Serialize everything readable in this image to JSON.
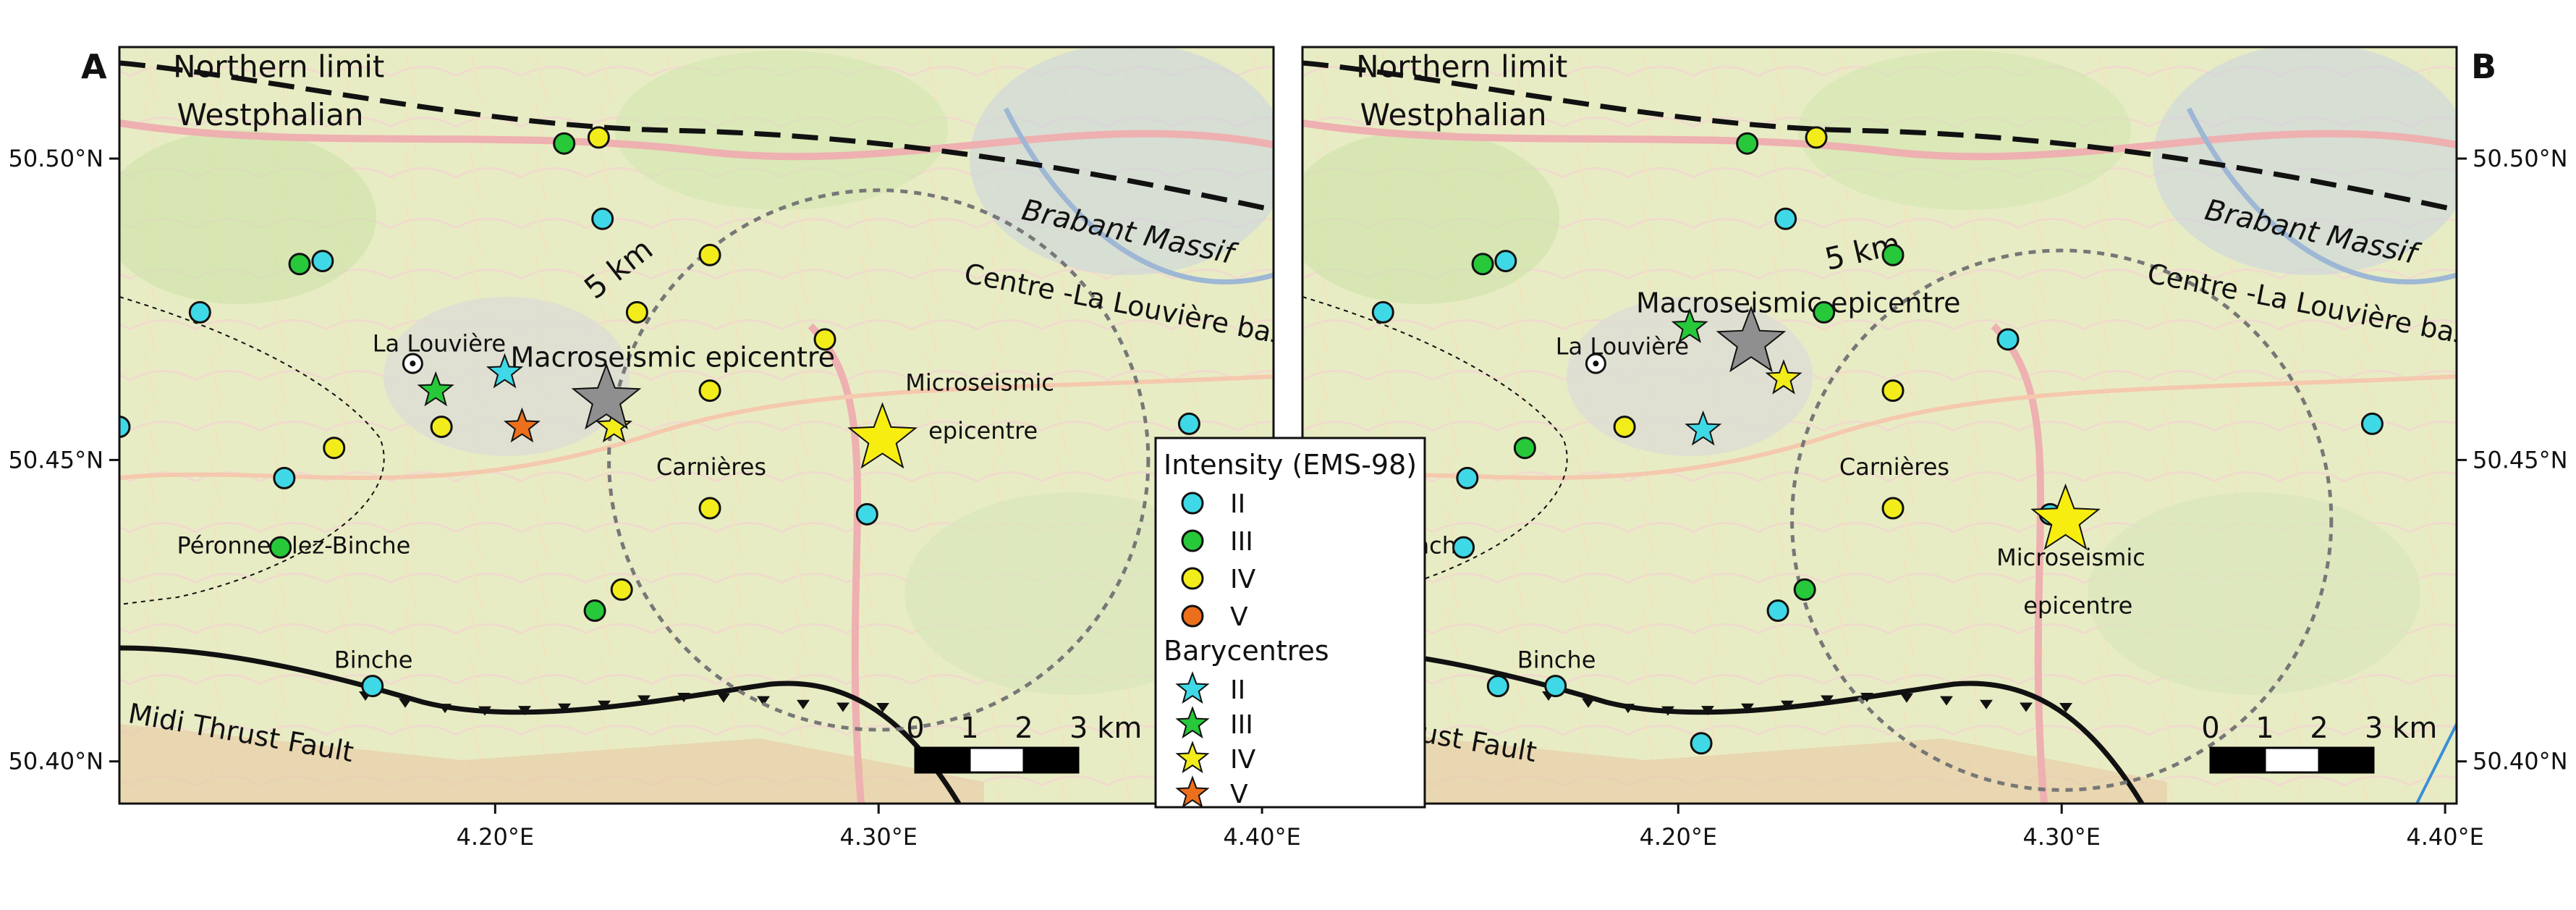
{
  "panels": [
    {
      "id": "A",
      "label": "A",
      "geo": {
        "lon0": 4.102,
        "lon1": 4.403,
        "lat0": 50.393,
        "lat1": 50.5185
      },
      "x_ticks": [
        {
          "value": 4.2,
          "label": "4.20°E"
        },
        {
          "value": 4.3,
          "label": "4.30°E"
        },
        {
          "value": 4.4,
          "label": "4.40°E"
        }
      ],
      "y_ticks": [
        {
          "value": 50.5,
          "label": "50.50°N"
        },
        {
          "value": 50.45,
          "label": "50.45°N"
        },
        {
          "value": 50.4,
          "label": "50.40°N"
        }
      ],
      "y_axis_side": "left",
      "circle": {
        "lon": 4.3,
        "lat": 50.45,
        "radius_km": 5
      },
      "circle_label": "5 km",
      "scale_bar": {
        "ticks": [
          "0",
          "1",
          "2",
          "3 km"
        ]
      },
      "texts": [
        {
          "text": "Northern limit",
          "lon": 4.116,
          "lat": 50.5135,
          "size": 42,
          "italic": false,
          "rot": 0
        },
        {
          "text": "Westphalian",
          "lon": 4.117,
          "lat": 50.5055,
          "size": 42,
          "italic": false,
          "rot": 0
        },
        {
          "text": "Brabant Massif",
          "lon": 4.337,
          "lat": 50.49,
          "size": 40,
          "italic": true,
          "rot": 12
        },
        {
          "text": "Centre -La Louvière basin",
          "lon": 4.322,
          "lat": 50.4795,
          "size": 38,
          "italic": false,
          "rot": 11
        },
        {
          "text": "La Louvière",
          "lon": 4.168,
          "lat": 50.468,
          "size": 32,
          "italic": false,
          "rot": 0
        },
        {
          "text": "Macroseismic epicentre",
          "lon": 4.204,
          "lat": 50.4655,
          "size": 38,
          "italic": false,
          "rot": 0
        },
        {
          "text": "Microseismic",
          "lon": 4.307,
          "lat": 50.4615,
          "size": 32,
          "italic": false,
          "rot": 0
        },
        {
          "text": "epicentre",
          "lon": 4.313,
          "lat": 50.4535,
          "size": 32,
          "italic": false,
          "rot": 0
        },
        {
          "text": "Carnières",
          "lon": 4.242,
          "lat": 50.4475,
          "size": 32,
          "italic": false,
          "rot": 0
        },
        {
          "text": "Péronnes-lez-Binche",
          "lon": 4.117,
          "lat": 50.4345,
          "size": 32,
          "italic": false,
          "rot": 0
        },
        {
          "text": "Binche",
          "lon": 4.158,
          "lat": 50.4155,
          "size": 32,
          "italic": false,
          "rot": 0
        },
        {
          "text": "Midi Thrust Fault",
          "lon": 4.104,
          "lat": 50.4065,
          "size": 38,
          "italic": false,
          "rot": 10
        },
        {
          "text": "5 km",
          "lon": 4.226,
          "lat": 50.4765,
          "size": 42,
          "italic": false,
          "rot": -38
        }
      ],
      "points": [
        {
          "lon": 4.218,
          "lat": 50.5025,
          "i": "III"
        },
        {
          "lon": 4.227,
          "lat": 50.5035,
          "i": "IV"
        },
        {
          "lon": 4.228,
          "lat": 50.49,
          "i": "II"
        },
        {
          "lon": 4.149,
          "lat": 50.4825,
          "i": "III"
        },
        {
          "lon": 4.155,
          "lat": 50.483,
          "i": "II"
        },
        {
          "lon": 4.123,
          "lat": 50.4745,
          "i": "II"
        },
        {
          "lon": 4.256,
          "lat": 50.484,
          "i": "IV"
        },
        {
          "lon": 4.237,
          "lat": 50.4745,
          "i": "IV"
        },
        {
          "lon": 4.286,
          "lat": 50.47,
          "i": "IV"
        },
        {
          "lon": 4.256,
          "lat": 50.4615,
          "i": "IV"
        },
        {
          "lon": 4.186,
          "lat": 50.4555,
          "i": "IV"
        },
        {
          "lon": 4.158,
          "lat": 50.452,
          "i": "IV"
        },
        {
          "lon": 4.102,
          "lat": 50.4555,
          "i": "II"
        },
        {
          "lon": 4.145,
          "lat": 50.447,
          "i": "II"
        },
        {
          "lon": 4.381,
          "lat": 50.456,
          "i": "II"
        },
        {
          "lon": 4.256,
          "lat": 50.442,
          "i": "IV"
        },
        {
          "lon": 4.297,
          "lat": 50.441,
          "i": "II"
        },
        {
          "lon": 4.144,
          "lat": 50.4355,
          "i": "III"
        },
        {
          "lon": 4.233,
          "lat": 50.4285,
          "i": "IV"
        },
        {
          "lon": 4.226,
          "lat": 50.425,
          "i": "III"
        },
        {
          "lon": 4.168,
          "lat": 50.4125,
          "i": "II"
        }
      ],
      "barycentres": [
        {
          "lon": 4.2025,
          "lat": 50.4645,
          "i": "II"
        },
        {
          "lon": 4.1845,
          "lat": 50.4615,
          "i": "III"
        },
        {
          "lon": 4.231,
          "lat": 50.4555,
          "i": "IV"
        },
        {
          "lon": 4.207,
          "lat": 50.4555,
          "i": "V"
        }
      ],
      "macro": {
        "lon": 4.229,
        "lat": 50.46
      },
      "micro": {
        "lon": 4.301,
        "lat": 50.4535
      },
      "town_marker": {
        "lon": 4.1785,
        "lat": 50.466
      }
    },
    {
      "id": "B",
      "label": "B",
      "geo": {
        "lon0": 4.102,
        "lon1": 4.403,
        "lat0": 50.393,
        "lat1": 50.5185
      },
      "x_ticks": [
        {
          "value": 4.2,
          "label": "4.20°E"
        },
        {
          "value": 4.3,
          "label": "4.30°E"
        },
        {
          "value": 4.4,
          "label": "4.40°E"
        }
      ],
      "y_ticks": [
        {
          "value": 50.5,
          "label": "50.50°N"
        },
        {
          "value": 50.45,
          "label": "50.45°N"
        },
        {
          "value": 50.4,
          "label": "50.40°N"
        }
      ],
      "y_axis_side": "right",
      "circle": {
        "lon": 4.3,
        "lat": 50.44,
        "radius_km": 5
      },
      "circle_label": "5 km",
      "scale_bar": {
        "ticks": [
          "0",
          "1",
          "2",
          "3 km"
        ]
      },
      "texts": [
        {
          "text": "Northern limit",
          "lon": 4.116,
          "lat": 50.5135,
          "size": 42,
          "italic": false,
          "rot": 0
        },
        {
          "text": "Westphalian",
          "lon": 4.117,
          "lat": 50.5055,
          "size": 42,
          "italic": false,
          "rot": 0
        },
        {
          "text": "Brabant Massif",
          "lon": 4.337,
          "lat": 50.49,
          "size": 40,
          "italic": true,
          "rot": 12
        },
        {
          "text": "Centre -La Louvière basin",
          "lon": 4.322,
          "lat": 50.4795,
          "size": 38,
          "italic": false,
          "rot": 11
        },
        {
          "text": "Macroseismic epicentre",
          "lon": 4.189,
          "lat": 50.4745,
          "size": 38,
          "italic": false,
          "rot": 0
        },
        {
          "text": "La Louvière",
          "lon": 4.168,
          "lat": 50.4675,
          "size": 32,
          "italic": false,
          "rot": 0
        },
        {
          "text": "5 km",
          "lon": 4.239,
          "lat": 50.4815,
          "size": 42,
          "italic": false,
          "rot": -13
        },
        {
          "text": "Carnières",
          "lon": 4.242,
          "lat": 50.4475,
          "size": 32,
          "italic": false,
          "rot": 0
        },
        {
          "text": "nes-lez-Binche",
          "lon": 4.102,
          "lat": 50.4345,
          "size": 32,
          "italic": false,
          "rot": 0
        },
        {
          "text": "Microseismic",
          "lon": 4.283,
          "lat": 50.4325,
          "size": 32,
          "italic": false,
          "rot": 0
        },
        {
          "text": "epicentre",
          "lon": 4.29,
          "lat": 50.4245,
          "size": 32,
          "italic": false,
          "rot": 0
        },
        {
          "text": "Binche",
          "lon": 4.158,
          "lat": 50.4155,
          "size": 32,
          "italic": false,
          "rot": 0
        },
        {
          "text": "Midi Thrust Fault",
          "lon": 4.104,
          "lat": 50.4065,
          "size": 38,
          "italic": false,
          "rot": 10
        }
      ],
      "points": [
        {
          "lon": 4.218,
          "lat": 50.5025,
          "i": "III"
        },
        {
          "lon": 4.236,
          "lat": 50.5035,
          "i": "IV"
        },
        {
          "lon": 4.228,
          "lat": 50.49,
          "i": "II"
        },
        {
          "lon": 4.149,
          "lat": 50.4825,
          "i": "III"
        },
        {
          "lon": 4.155,
          "lat": 50.483,
          "i": "II"
        },
        {
          "lon": 4.123,
          "lat": 50.4745,
          "i": "II"
        },
        {
          "lon": 4.256,
          "lat": 50.484,
          "i": "III"
        },
        {
          "lon": 4.238,
          "lat": 50.4745,
          "i": "III"
        },
        {
          "lon": 4.286,
          "lat": 50.47,
          "i": "II"
        },
        {
          "lon": 4.256,
          "lat": 50.4615,
          "i": "IV"
        },
        {
          "lon": 4.186,
          "lat": 50.4555,
          "i": "IV"
        },
        {
          "lon": 4.16,
          "lat": 50.452,
          "i": "III"
        },
        {
          "lon": 4.145,
          "lat": 50.447,
          "i": "II"
        },
        {
          "lon": 4.381,
          "lat": 50.456,
          "i": "II"
        },
        {
          "lon": 4.256,
          "lat": 50.442,
          "i": "IV"
        },
        {
          "lon": 4.297,
          "lat": 50.441,
          "i": "II"
        },
        {
          "lon": 4.144,
          "lat": 50.4355,
          "i": "II"
        },
        {
          "lon": 4.233,
          "lat": 50.4285,
          "i": "III"
        },
        {
          "lon": 4.226,
          "lat": 50.425,
          "i": "II"
        },
        {
          "lon": 4.153,
          "lat": 50.4125,
          "i": "II"
        },
        {
          "lon": 4.168,
          "lat": 50.4125,
          "i": "II"
        },
        {
          "lon": 4.206,
          "lat": 50.403,
          "i": "II"
        }
      ],
      "barycentres": [
        {
          "lon": 4.203,
          "lat": 50.472,
          "i": "III"
        },
        {
          "lon": 4.2275,
          "lat": 50.4635,
          "i": "IV"
        },
        {
          "lon": 4.2065,
          "lat": 50.455,
          "i": "II"
        }
      ],
      "macro": {
        "lon": 4.219,
        "lat": 50.4695
      },
      "micro": {
        "lon": 4.301,
        "lat": 50.44
      },
      "town_marker": {
        "lon": 4.1785,
        "lat": 50.466
      }
    }
  ],
  "legend": {
    "title": "Intensity (EMS-98)",
    "points": [
      {
        "i": "II",
        "label": "II"
      },
      {
        "i": "III",
        "label": "III"
      },
      {
        "i": "IV",
        "label": "IV"
      },
      {
        "i": "V",
        "label": "V"
      }
    ],
    "bary_title": "Barycentres",
    "barys": [
      {
        "i": "II",
        "label": "II"
      },
      {
        "i": "III",
        "label": "III"
      },
      {
        "i": "IV",
        "label": "IV"
      },
      {
        "i": "V",
        "label": "V"
      }
    ]
  },
  "colors": {
    "II": "#3fd8e6",
    "III": "#27c83a",
    "IV": "#f2ec1b",
    "V": "#ec6f1c",
    "macro": "#8f8f8f",
    "micro": "#f7ee10",
    "map_bg": "#e8ecc4"
  }
}
